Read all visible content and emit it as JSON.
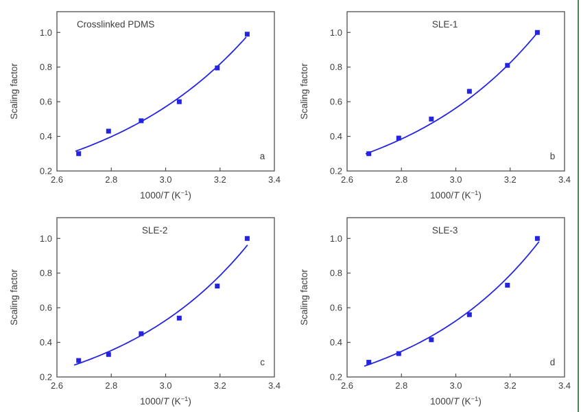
{
  "style": {
    "background": "#ffffff",
    "axis_color": "#4d4d4d",
    "text_color": "#3d3d3d",
    "accent_blue": "#2424e0",
    "right_border_green": "#478457"
  },
  "axis_shared": {
    "xlabel": "1000/T (K-1)",
    "xlabel_parts": {
      "pre": "1000/",
      "var": "T",
      "post": " (K",
      "sup": "−1",
      "end": ")"
    },
    "ylabel": "Scaling factor",
    "xticks": [
      "2.6",
      "2.8",
      "3.0",
      "3.2",
      "3.4"
    ],
    "yticks": [
      "0.2",
      "0.4",
      "0.6",
      "0.8",
      "1.0"
    ],
    "xlim": [
      2.6,
      3.4
    ],
    "ylim": [
      0.2,
      1.12
    ]
  },
  "chart_data": [
    {
      "type": "scatter",
      "panel_letter": "a",
      "title": "Crosslinked PDMS",
      "title_frac": 0.27,
      "xlabel": "1000/T (K-1)",
      "ylabel": "Scaling factor",
      "x": [
        2.68,
        2.79,
        2.91,
        3.05,
        3.19,
        3.3
      ],
      "values": [
        0.3,
        0.43,
        0.49,
        0.6,
        0.795,
        0.99
      ],
      "fit": {
        "type": "exponential",
        "A": 0.002578,
        "B": 1.8,
        "x_range": [
          2.67,
          3.295
        ]
      },
      "xlim": [
        2.6,
        3.4
      ],
      "ylim": [
        0.2,
        1.12
      ],
      "xticks": [
        "2.6",
        "2.8",
        "3.0",
        "3.2",
        "3.4"
      ],
      "yticks": [
        "0.2",
        "0.4",
        "0.6",
        "0.8",
        "1.0"
      ],
      "marker_color": "#2424e0",
      "line_color": "#2424e0"
    },
    {
      "type": "scatter",
      "panel_letter": "b",
      "title": "SLE-1",
      "title_frac": 0.45,
      "xlabel": "1000/T (K-1)",
      "ylabel": "Scaling factor",
      "x": [
        2.68,
        2.79,
        2.91,
        3.05,
        3.19,
        3.3
      ],
      "values": [
        0.3,
        0.39,
        0.5,
        0.66,
        0.81,
        1.0
      ],
      "fit": {
        "type": "exponential",
        "A": 0.00184,
        "B": 1.908,
        "x_range": [
          2.67,
          3.3
        ]
      },
      "xlim": [
        2.6,
        3.4
      ],
      "ylim": [
        0.2,
        1.12
      ],
      "xticks": [
        "2.6",
        "2.8",
        "3.0",
        "3.2",
        "3.4"
      ],
      "yticks": [
        "0.2",
        "0.4",
        "0.6",
        "0.8",
        "1.0"
      ],
      "marker_color": "#2424e0",
      "line_color": "#2424e0"
    },
    {
      "type": "scatter",
      "panel_letter": "c",
      "title": "SLE-2",
      "title_frac": 0.45,
      "xlabel": "1000/T (K-1)",
      "ylabel": "Scaling factor",
      "x": [
        2.68,
        2.79,
        2.91,
        3.05,
        3.19,
        3.3
      ],
      "values": [
        0.295,
        0.33,
        0.45,
        0.54,
        0.725,
        1.0
      ],
      "fit": {
        "type": "exponential",
        "A": 0.001306,
        "B": 2.0,
        "x_range": [
          2.665,
          3.3
        ]
      },
      "xlim": [
        2.6,
        3.4
      ],
      "ylim": [
        0.2,
        1.12
      ],
      "xticks": [
        "2.6",
        "2.8",
        "3.0",
        "3.2",
        "3.4"
      ],
      "yticks": [
        "0.2",
        "0.4",
        "0.6",
        "0.8",
        "1.0"
      ],
      "marker_color": "#2424e0",
      "line_color": "#2424e0"
    },
    {
      "type": "scatter",
      "panel_letter": "d",
      "title": "SLE-3",
      "title_frac": 0.45,
      "xlabel": "1000/T (K-1)",
      "ylabel": "Scaling factor",
      "x": [
        2.68,
        2.79,
        2.91,
        3.05,
        3.19,
        3.3
      ],
      "values": [
        0.285,
        0.335,
        0.415,
        0.56,
        0.73,
        1.0
      ],
      "fit": {
        "type": "exponential",
        "A": 0.001118,
        "B": 2.05,
        "x_range": [
          2.665,
          3.305
        ]
      },
      "xlim": [
        2.6,
        3.4
      ],
      "ylim": [
        0.2,
        1.12
      ],
      "xticks": [
        "2.6",
        "2.8",
        "3.0",
        "3.2",
        "3.4"
      ],
      "yticks": [
        "0.2",
        "0.4",
        "0.6",
        "0.8",
        "1.0"
      ],
      "marker_color": "#2424e0",
      "line_color": "#2424e0"
    }
  ]
}
